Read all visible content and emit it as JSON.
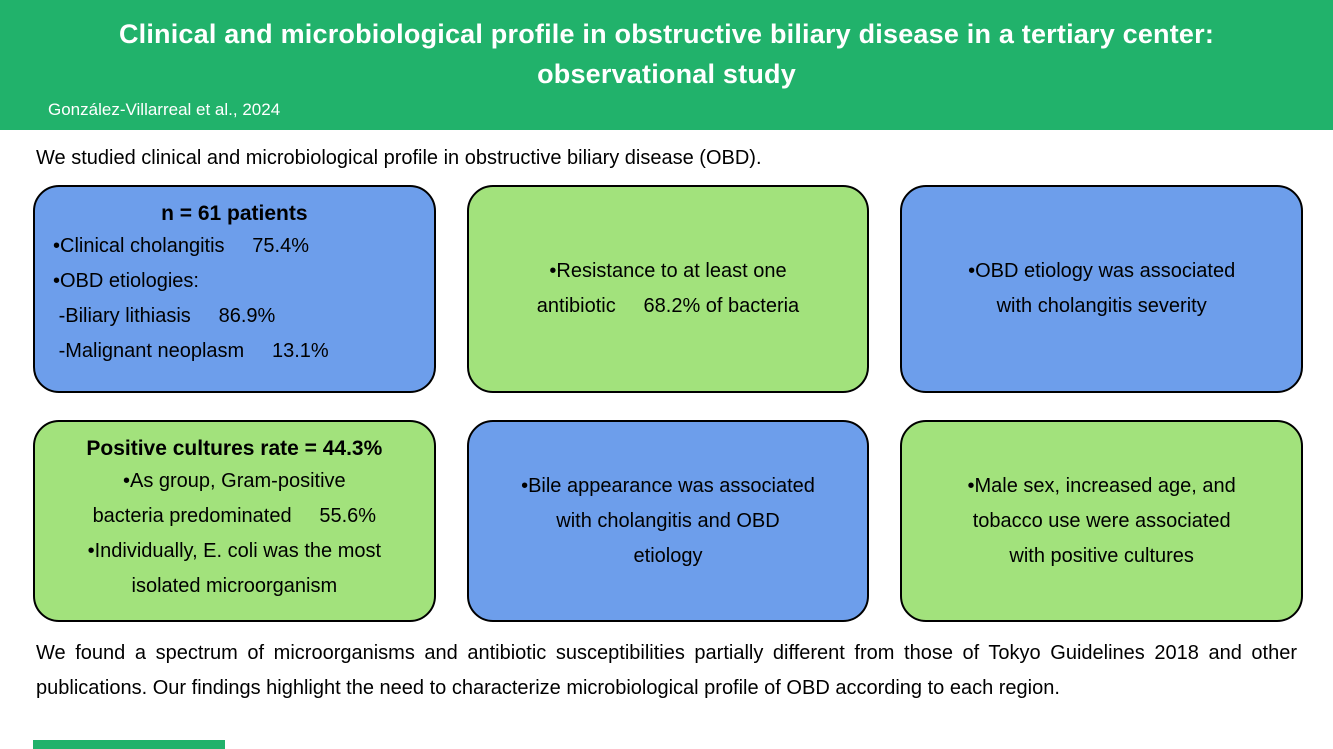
{
  "header": {
    "title": "Clinical and microbiological profile in obstructive biliary disease in a tertiary center: observational study",
    "authors": "González-Villarreal et al., 2024"
  },
  "intro": "We studied clinical and microbiological profile in obstructive biliary disease (OBD).",
  "boxes": [
    {
      "id": "patients",
      "color": "blue",
      "title": "n = 61 patients",
      "body": "•Clinical cholangitis     75.4%\n•OBD etiologies:\n -Biliary lithiasis     86.9%\n -Malignant neoplasm     13.1%"
    },
    {
      "id": "antibiotic-resistance",
      "color": "green",
      "body": "•Resistance to at least one\nantibiotic     68.2% of bacteria"
    },
    {
      "id": "etiology-severity",
      "color": "blue",
      "body": "•OBD etiology was associated\nwith cholangitis severity"
    },
    {
      "id": "positive-cultures",
      "color": "green",
      "title": "Positive cultures rate = 44.3%",
      "body": "•As group, Gram-positive\nbacteria predominated     55.6%\n•Individually, E. coli was the most\nisolated microorganism"
    },
    {
      "id": "bile-appearance",
      "color": "blue",
      "body": "•Bile appearance was associated\nwith cholangitis and OBD\netiology"
    },
    {
      "id": "demographics-cultures",
      "color": "green",
      "body": "•Male sex, increased age, and\ntobacco use were associated\nwith positive cultures"
    }
  ],
  "conclusion": "We found a spectrum of microorganisms and antibiotic susceptibilities partially different from those of Tokyo Guidelines 2018 and other publications. Our findings highlight the need to characterize microbiological profile of OBD according to each region.",
  "colors": {
    "header_green": "#21b26b",
    "box_blue": "#6d9eeb",
    "box_green": "#a2e27c",
    "border": "#000000",
    "text": "#000000",
    "background": "#ffffff"
  }
}
